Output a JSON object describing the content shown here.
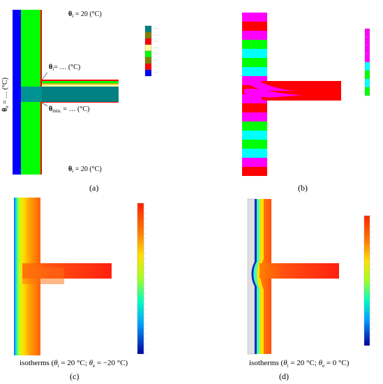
{
  "panel_a": {
    "caption": "(a)",
    "label_theta_i_top": {
      "symbol": "θ",
      "sub": "i",
      "text": " = 20 (°C)"
    },
    "label_theta_i_bottom": {
      "symbol": "θ",
      "sub": "i",
      "text": " = 20 (°C)"
    },
    "label_theta_i_corner": {
      "symbol": "θ",
      "sub": "i",
      "text": "= … (°C)"
    },
    "label_theta_min": {
      "symbol": "θ",
      "sub": "min.",
      "text": " = … (°C)"
    },
    "label_theta_e": {
      "symbol": "θ",
      "sub": "e",
      "text": " = … (°C)"
    },
    "legend_colors": [
      "#008080",
      "#808000",
      "#ff0000",
      "#ffff99",
      "#00ff00",
      "#808000",
      "#ff0000",
      "#0000ff"
    ]
  },
  "panel_b": {
    "caption": "(b)",
    "legend_colors": [
      "#ff00ff",
      "#ff00ff",
      "#ff00ff",
      "#ff00ff",
      "#00ffff",
      "#00ff00",
      "#00ffff",
      "#00ff00"
    ]
  },
  "panel_c": {
    "caption": "(c)",
    "isotherm_prefix": "isotherms (",
    "theta_i": "θ",
    "theta_i_sub": "i",
    "theta_i_val": " = 20 °C; ",
    "theta_e": "θ",
    "theta_e_sub": "e",
    "theta_e_val": " = −20 °C)"
  },
  "panel_d": {
    "caption": "(d)",
    "isotherm_prefix": "isotherms (",
    "theta_i": "θ",
    "theta_i_sub": "i",
    "theta_i_val": " = 20 °C; ",
    "theta_e": "θ",
    "theta_e_sub": "e",
    "theta_e_val": " = 0 °C)"
  },
  "colors": {
    "blue": "#0000ff",
    "green": "#00ff00",
    "teal": "#008080",
    "red": "#ff0000",
    "magenta": "#ff00ff",
    "cyan": "#00ffff",
    "light_gray": "#e0e0e0"
  }
}
